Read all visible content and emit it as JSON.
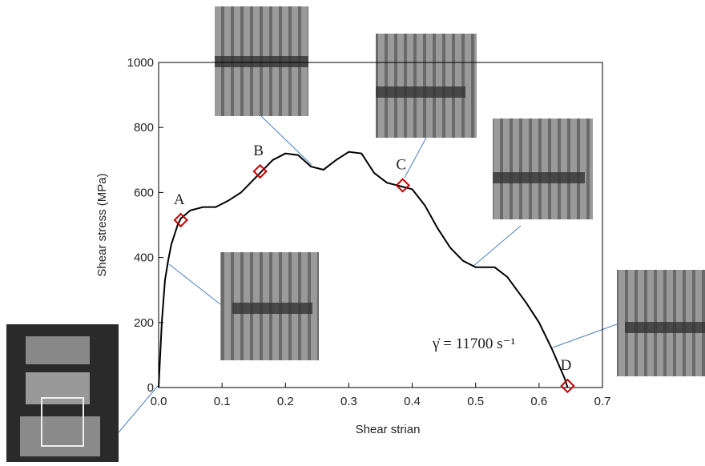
{
  "chart_data": {
    "type": "line",
    "x_label": "Shear strian",
    "y_label": "Shear stress (MPa)",
    "xlim": [
      0,
      0.7
    ],
    "ylim": [
      0,
      1000
    ],
    "xticks": [
      {
        "value": 0,
        "label": "0.0"
      },
      0.1,
      0.2,
      0.3,
      0.4,
      0.5,
      0.6,
      0.7
    ],
    "yticks": [
      0,
      200,
      400,
      600,
      800,
      1000
    ],
    "x": [
      0,
      0.005,
      0.01,
      0.015,
      0.02,
      0.03,
      0.035,
      0.05,
      0.07,
      0.09,
      0.11,
      0.13,
      0.16,
      0.18,
      0.2,
      0.22,
      0.24,
      0.26,
      0.28,
      0.3,
      0.32,
      0.34,
      0.36,
      0.38,
      0.4,
      0.42,
      0.44,
      0.46,
      0.48,
      0.5,
      0.53,
      0.55,
      0.58,
      0.6,
      0.62,
      0.64,
      0.645
    ],
    "series": [
      {
        "color": "#000000",
        "values": [
          0,
          200,
          330,
          390,
          440,
          500,
          520,
          545,
          555,
          555,
          575,
          600,
          660,
          700,
          720,
          715,
          680,
          670,
          700,
          725,
          720,
          660,
          630,
          620,
          610,
          560,
          490,
          430,
          390,
          370,
          370,
          340,
          260,
          200,
          120,
          30,
          0
        ]
      }
    ],
    "points": {
      "color": "#c00000",
      "labels": [
        "A",
        "B",
        "C",
        "D"
      ],
      "x": [
        0.035,
        0.16,
        0.385,
        0.645
      ],
      "y": [
        515,
        665,
        622,
        5
      ]
    },
    "annotation": "γ̇ = 11700 s⁻¹"
  }
}
